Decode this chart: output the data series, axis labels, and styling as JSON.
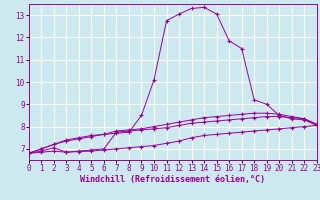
{
  "background_color": "#cce9f0",
  "grid_color": "#ffffff",
  "line_color": "#990099",
  "xlabel": "Windchill (Refroidissement éolien,°C)",
  "xlim": [
    0,
    23
  ],
  "ylim": [
    6.5,
    13.5
  ],
  "yticks": [
    7,
    8,
    9,
    10,
    11,
    12,
    13
  ],
  "xticks": [
    0,
    1,
    2,
    3,
    4,
    5,
    6,
    7,
    8,
    9,
    10,
    11,
    12,
    13,
    14,
    15,
    16,
    17,
    18,
    19,
    20,
    21,
    22,
    23
  ],
  "series": [
    {
      "x": [
        0,
        1,
        2,
        3,
        4,
        5,
        6,
        7,
        8,
        9,
        10,
        11,
        12,
        13,
        14,
        15,
        16,
        17,
        18,
        19,
        20,
        21,
        22,
        23
      ],
      "y": [
        6.8,
        7.0,
        7.2,
        7.4,
        7.5,
        7.6,
        7.65,
        7.7,
        7.75,
        8.5,
        10.1,
        12.75,
        13.05,
        13.3,
        13.35,
        13.05,
        11.85,
        11.5,
        9.2,
        9.0,
        8.5,
        8.35,
        8.3,
        8.05
      ]
    },
    {
      "x": [
        0,
        1,
        2,
        3,
        4,
        5,
        6,
        7,
        8,
        9,
        10,
        11,
        12,
        13,
        14,
        15,
        16,
        17,
        18,
        19,
        20,
        21,
        22,
        23
      ],
      "y": [
        6.8,
        7.0,
        7.2,
        7.35,
        7.45,
        7.55,
        7.65,
        7.8,
        7.85,
        7.9,
        8.0,
        8.1,
        8.2,
        8.3,
        8.4,
        8.45,
        8.5,
        8.55,
        8.6,
        8.6,
        8.55,
        8.45,
        8.35,
        8.1
      ]
    },
    {
      "x": [
        0,
        1,
        2,
        3,
        4,
        5,
        6,
        7,
        8,
        9,
        10,
        11,
        12,
        13,
        14,
        15,
        16,
        17,
        18,
        19,
        20,
        21,
        22,
        23
      ],
      "y": [
        6.8,
        6.9,
        7.05,
        6.85,
        6.9,
        6.95,
        7.0,
        7.75,
        7.8,
        7.85,
        7.9,
        7.95,
        8.05,
        8.15,
        8.2,
        8.25,
        8.3,
        8.35,
        8.4,
        8.45,
        8.45,
        8.4,
        8.35,
        8.1
      ]
    },
    {
      "x": [
        0,
        1,
        2,
        3,
        4,
        5,
        6,
        7,
        8,
        9,
        10,
        11,
        12,
        13,
        14,
        15,
        16,
        17,
        18,
        19,
        20,
        21,
        22,
        23
      ],
      "y": [
        6.8,
        6.85,
        6.9,
        6.85,
        6.88,
        6.9,
        6.95,
        7.0,
        7.05,
        7.1,
        7.15,
        7.25,
        7.35,
        7.5,
        7.6,
        7.65,
        7.7,
        7.75,
        7.8,
        7.85,
        7.9,
        7.95,
        8.0,
        8.05
      ]
    }
  ],
  "tick_fontsize": 5.5,
  "xlabel_fontsize": 6.0,
  "marker": "+",
  "marker_size": 3,
  "line_width": 0.7
}
